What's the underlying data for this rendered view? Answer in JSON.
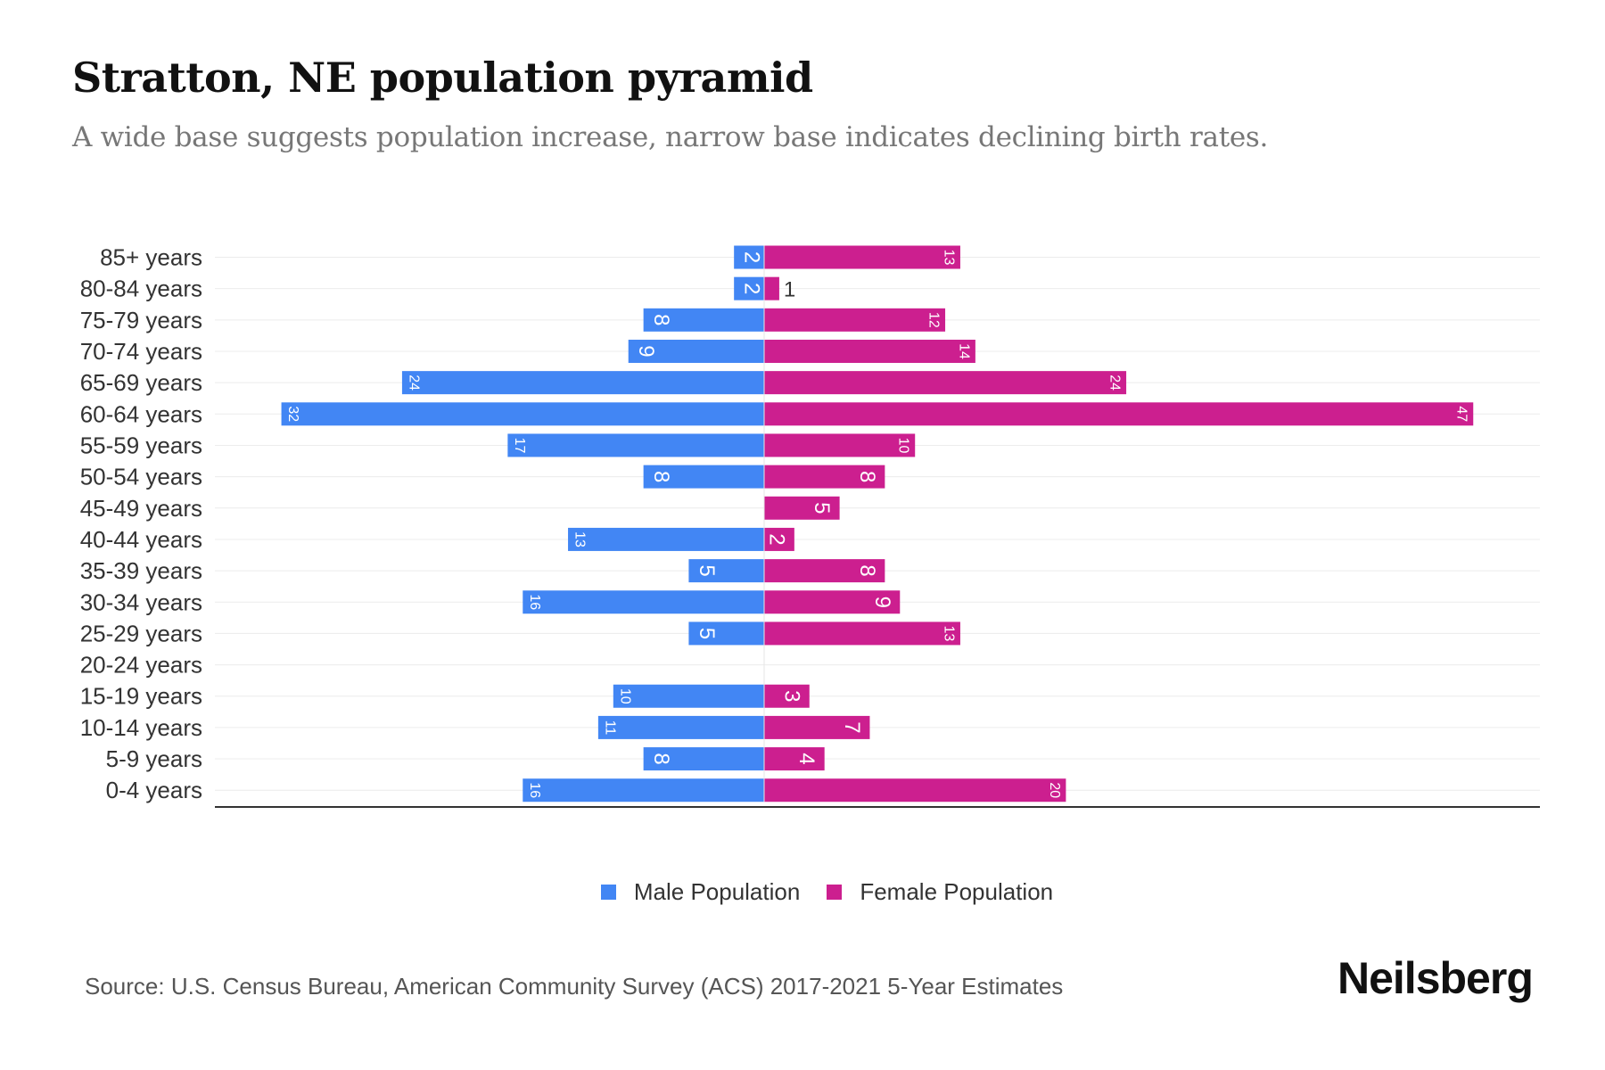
{
  "header": {
    "title": "Stratton, NE population pyramid",
    "subtitle": "A wide base suggests population increase, narrow base indicates declining birth rates."
  },
  "chart_data": {
    "type": "bar",
    "orientation": "horizontal-pyramid",
    "categories": [
      "85+ years",
      "80-84 years",
      "75-79 years",
      "70-74 years",
      "65-69 years",
      "60-64 years",
      "55-59 years",
      "50-54 years",
      "45-49 years",
      "40-44 years",
      "35-39 years",
      "30-34 years",
      "25-29 years",
      "20-24 years",
      "15-19 years",
      "10-14 years",
      "5-9 years",
      "0-4 years"
    ],
    "series": [
      {
        "name": "Male Population",
        "color": "#4286f4",
        "values": [
          2,
          2,
          8,
          9,
          24,
          32,
          17,
          8,
          0,
          13,
          5,
          16,
          5,
          0,
          10,
          11,
          8,
          16
        ]
      },
      {
        "name": "Female Population",
        "color": "#cc1f8f",
        "values": [
          13,
          1,
          12,
          14,
          24,
          47,
          10,
          8,
          5,
          2,
          8,
          9,
          13,
          0,
          3,
          7,
          4,
          20
        ]
      }
    ],
    "xlim": [
      -32,
      47
    ],
    "grid": true,
    "legend": "bottom-center"
  },
  "legend": {
    "male": "Male Population",
    "female": "Female Population",
    "male_color": "#4286f4",
    "female_color": "#cc1f8f"
  },
  "footer": {
    "source": "Source: U.S. Census Bureau, American Community Survey (ACS) 2017-2021 5-Year Estimates",
    "logo": "Neilsberg"
  }
}
